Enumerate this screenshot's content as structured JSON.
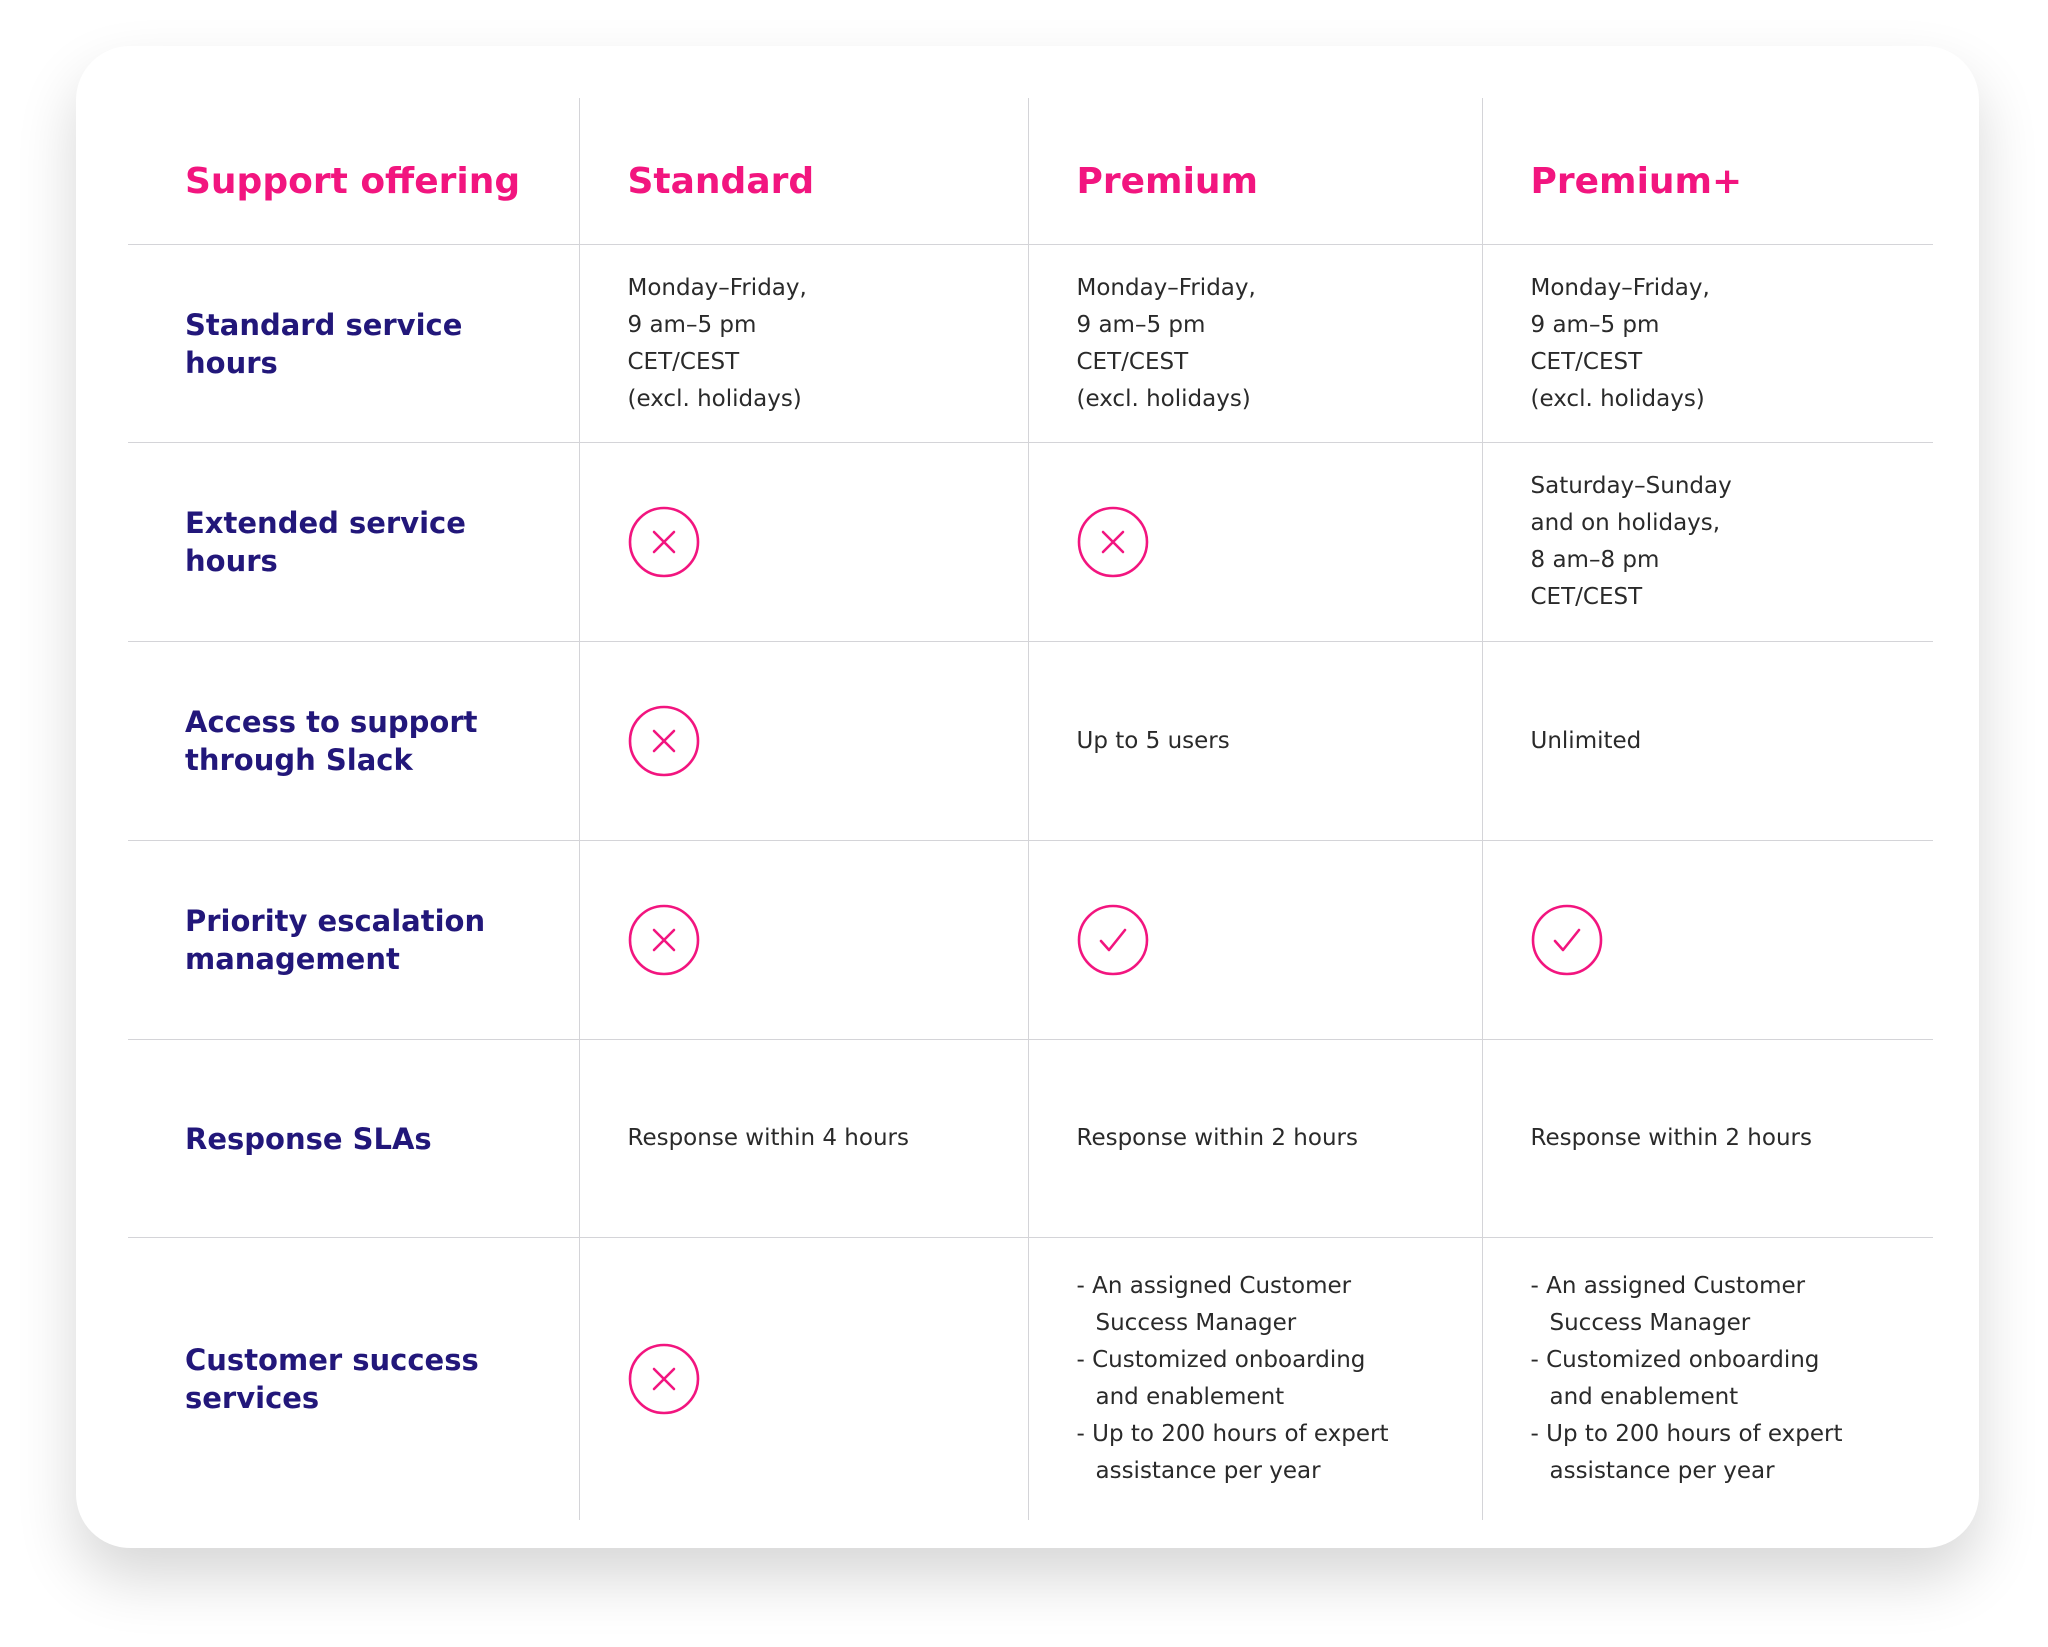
{
  "header": [
    "Support offering",
    "Standard",
    "Premium",
    "Premium+"
  ],
  "rows": [
    {
      "label": "Standard service hours",
      "cells": [
        [
          "Monday–Friday,",
          "9 am–5 pm",
          "CET/CEST",
          "(excl. holidays)"
        ],
        [
          "Monday–Friday,",
          "9 am–5 pm",
          "CET/CEST",
          "(excl. holidays)"
        ],
        [
          "Monday–Friday,",
          "9 am–5 pm",
          "CET/CEST",
          "(excl. holidays)"
        ]
      ]
    },
    {
      "label": "Extended service hours",
      "cells": [
        false,
        false,
        [
          "Saturday–Sunday",
          "and on holidays,",
          "8 am–8 pm",
          "CET/CEST"
        ]
      ]
    },
    {
      "label": "Access to support through Slack",
      "cells": [
        false,
        [
          "Up to 5 users"
        ],
        [
          "Unlimited"
        ]
      ]
    },
    {
      "label": "Priority escalation management",
      "cells": [
        false,
        true,
        true
      ]
    },
    {
      "label": "Response SLAs",
      "cells": [
        [
          "Response within 4 hours"
        ],
        [
          "Response within 2 hours"
        ],
        [
          "Response within 2 hours"
        ]
      ]
    },
    {
      "label": "Customer success services",
      "cells": [
        false,
        [
          [
            "- An assigned Customer",
            "Success Manager"
          ],
          [
            "- Customized onboarding",
            "and enablement"
          ],
          [
            "- Up to 200 hours of expert",
            "assistance per year"
          ]
        ],
        [
          [
            "- An assigned Customer",
            "Success Manager"
          ],
          [
            "- Customized onboarding",
            "and enablement"
          ],
          [
            "- Up to 200 hours of expert",
            "assistance per year"
          ]
        ]
      ]
    }
  ]
}
